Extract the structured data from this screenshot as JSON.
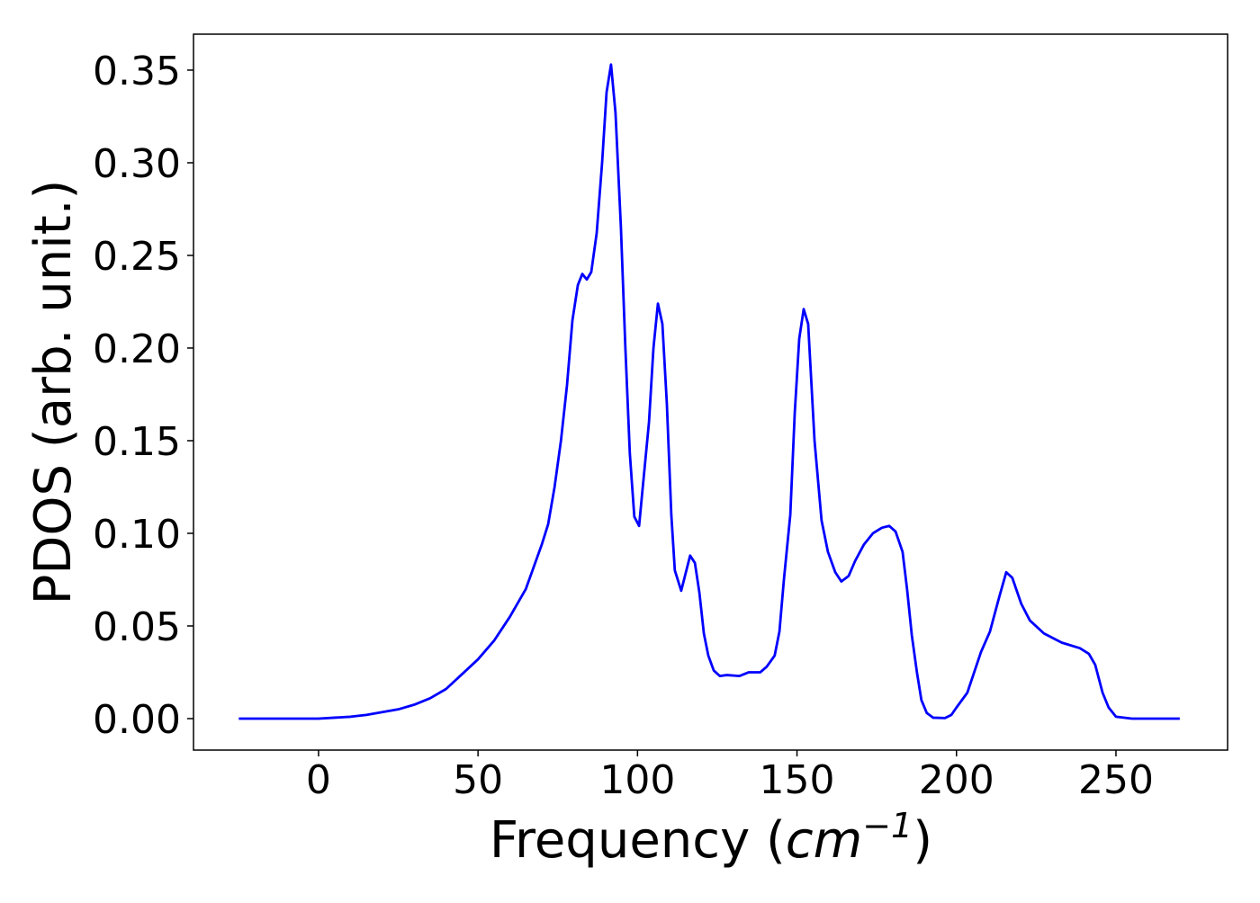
{
  "chart_data": {
    "type": "line",
    "xlabel": [
      "Frequency (",
      "cm",
      "−1",
      ")"
    ],
    "ylabel": "PDOS (arb. unit.)",
    "xlim": [
      -39.2,
      285
    ],
    "ylim": [
      -0.017,
      0.3694
    ],
    "xticks": [
      0,
      50,
      100,
      150,
      200,
      250
    ],
    "yticks": [
      {
        "value": 0,
        "label": "0.00"
      },
      {
        "value": 0.05,
        "label": "0.05"
      },
      {
        "value": 0.1,
        "label": "0.10"
      },
      {
        "value": 0.15,
        "label": "0.15"
      },
      {
        "value": 0.2,
        "label": "0.20"
      },
      {
        "value": 0.25,
        "label": "0.25"
      },
      {
        "value": 0.3,
        "label": "0.30"
      },
      {
        "value": 0.35,
        "label": "0.35"
      }
    ],
    "grid": false,
    "series": [
      {
        "color": "#0000ff",
        "x": [
          -25,
          0,
          5,
          10,
          15,
          20,
          25,
          30,
          35,
          40,
          45,
          50,
          55,
          60,
          65,
          70,
          72,
          74,
          76,
          77.9,
          79.6,
          81.3,
          82.7,
          84.1,
          85.5,
          87.2,
          88.9,
          90.3,
          91.7,
          93.1,
          94.8,
          96.2,
          97.6,
          99,
          100.5,
          101.6,
          103.6,
          105,
          106.4,
          107.8,
          109.2,
          110.6,
          111.7,
          113.7,
          116.5,
          118,
          119.4,
          120.8,
          122.2,
          123.9,
          125.8,
          128,
          132,
          134.9,
          138.5,
          140.5,
          143,
          144.5,
          145.9,
          147.9,
          149.3,
          150.7,
          152.1,
          153.5,
          155.5,
          157.7,
          159.7,
          162,
          163.9,
          166.2,
          168.2,
          171,
          173.8,
          176.6,
          178.9,
          180.9,
          183.1,
          184.5,
          186,
          187.6,
          189,
          190.7,
          192.7,
          196.4,
          198.4,
          200,
          203.4,
          207.7,
          210.5,
          213.3,
          215.6,
          217.5,
          220.3,
          223,
          227.4,
          233,
          238.7,
          241.5,
          243.5,
          245.8,
          247.7,
          250,
          255,
          270
        ],
        "values": [
          0,
          0,
          0.0005,
          0.001,
          0.002,
          0.0035,
          0.005,
          0.0075,
          0.011,
          0.016,
          0.024,
          0.032,
          0.042,
          0.055,
          0.07,
          0.094,
          0.105,
          0.125,
          0.15,
          0.18,
          0.215,
          0.234,
          0.24,
          0.237,
          0.241,
          0.262,
          0.3,
          0.338,
          0.353,
          0.327,
          0.265,
          0.2,
          0.143,
          0.109,
          0.104,
          0.124,
          0.16,
          0.2,
          0.224,
          0.213,
          0.17,
          0.11,
          0.08,
          0.069,
          0.088,
          0.084,
          0.068,
          0.046,
          0.034,
          0.026,
          0.023,
          0.0235,
          0.023,
          0.025,
          0.025,
          0.028,
          0.034,
          0.047,
          0.075,
          0.11,
          0.165,
          0.205,
          0.221,
          0.213,
          0.15,
          0.107,
          0.09,
          0.079,
          0.074,
          0.077,
          0.085,
          0.094,
          0.1,
          0.103,
          0.104,
          0.101,
          0.09,
          0.07,
          0.045,
          0.025,
          0.01,
          0.003,
          0.0005,
          0.0003,
          0.002,
          0.006,
          0.014,
          0.036,
          0.047,
          0.065,
          0.079,
          0.076,
          0.062,
          0.053,
          0.046,
          0.041,
          0.038,
          0.035,
          0.029,
          0.014,
          0.006,
          0.001,
          0,
          0
        ]
      }
    ]
  }
}
